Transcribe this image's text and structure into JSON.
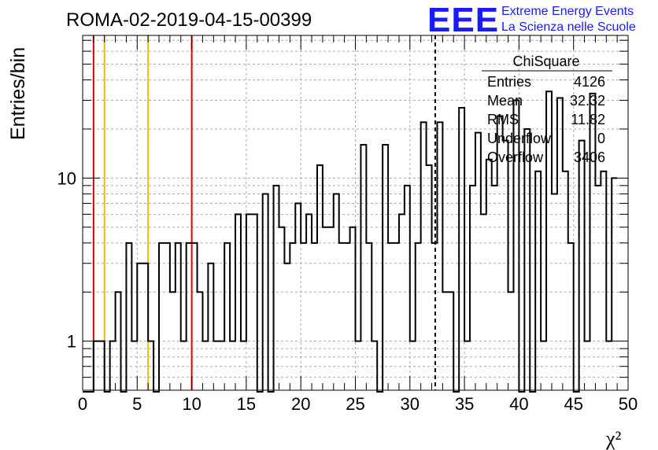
{
  "title": "ROMA-02-2019-04-15-00399",
  "logo": {
    "mark": "EEE",
    "line1": "Extreme Energy Events",
    "line2": "La Scienza nelle Scuole",
    "color": "#1a1aff"
  },
  "stats": {
    "header": "ChiSquare",
    "rows": [
      {
        "label": "Entries",
        "value": "4126"
      },
      {
        "label": "Mean",
        "value": "32.32"
      },
      {
        "label": "RMS",
        "value": "11.82"
      },
      {
        "label": "Underflow",
        "value": "0"
      },
      {
        "label": "Overflow",
        "value": "3406"
      }
    ]
  },
  "chart_data": {
    "type": "histogram",
    "title": "ROMA-02-2019-04-15-00399",
    "xlabel": "χ²",
    "ylabel": "Entries/bin",
    "xlim": [
      0,
      50
    ],
    "ylim": [
      0.5,
      75
    ],
    "yscale": "log",
    "grid": true,
    "bin_width": 0.5,
    "x_ticks": [
      0,
      5,
      10,
      15,
      20,
      25,
      30,
      35,
      40,
      45,
      50
    ],
    "x_tick_labels": [
      "0",
      "5",
      "10",
      "15",
      "20",
      "25",
      "30",
      "35",
      "40",
      "45",
      "50"
    ],
    "y_tick_labels": [
      {
        "value": 1,
        "label": "1"
      },
      {
        "value": 10,
        "label": "10"
      }
    ],
    "bin_edges_start": 0,
    "counts": [
      0,
      0,
      1,
      1,
      0,
      1,
      2,
      0,
      4,
      1,
      3,
      3,
      1,
      0,
      4,
      4,
      2,
      4,
      1,
      4,
      4,
      2,
      1,
      3,
      1,
      1,
      4,
      1,
      6,
      1,
      6,
      6,
      0,
      8,
      0,
      9,
      5,
      3,
      4,
      7,
      4,
      6,
      4,
      12,
      5,
      5,
      8,
      4,
      4,
      5,
      1,
      16,
      4,
      1,
      0,
      16,
      4,
      4,
      6,
      9,
      1,
      4,
      22,
      12,
      4,
      22,
      2,
      2,
      0,
      27,
      1,
      9,
      19,
      6,
      13,
      9,
      24,
      17,
      2,
      30,
      0,
      20,
      0,
      11,
      1,
      34,
      8,
      31,
      11,
      4,
      0,
      17,
      1,
      33,
      9,
      11,
      1,
      10
    ],
    "vertical_lines": [
      {
        "x": 1,
        "color": "#e00000",
        "style": "solid"
      },
      {
        "x": 2,
        "color": "#e8c000",
        "style": "solid"
      },
      {
        "x": 6,
        "color": "#e8c000",
        "style": "solid"
      },
      {
        "x": 10,
        "color": "#e00000",
        "style": "solid"
      },
      {
        "x": 32.32,
        "color": "#000000",
        "style": "dashed"
      }
    ],
    "legend_position": "top-right"
  }
}
